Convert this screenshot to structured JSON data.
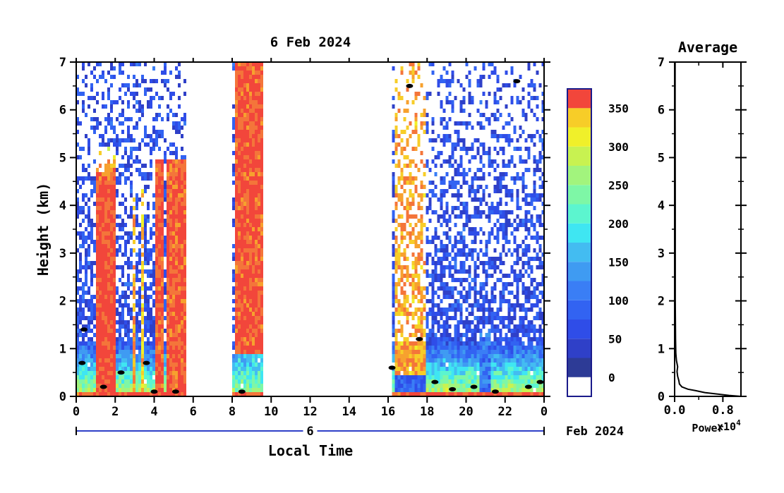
{
  "chart_data": [
    {
      "type": "heatmap",
      "title": "6 Feb 2024",
      "xlabel": "Local Time",
      "ylabel": "Height (km)",
      "x_ticks": [
        "0",
        "2",
        "4",
        "6",
        "8",
        "10",
        "12",
        "14",
        "16",
        "18",
        "20",
        "22",
        "0"
      ],
      "y_ticks": [
        "0",
        "1",
        "2",
        "3",
        "4",
        "5",
        "6",
        "7"
      ],
      "xlim_hours": [
        0,
        24
      ],
      "ylim_km": [
        0,
        7
      ],
      "date_axis": {
        "day_label": "6",
        "month_label": "Feb 2024"
      },
      "data_segments_hours": [
        [
          0,
          5.6
        ],
        [
          8.0,
          9.5
        ],
        [
          16.2,
          24
        ]
      ],
      "colorbar": {
        "tick_labels": [
          "0",
          "50",
          "100",
          "150",
          "200",
          "250",
          "300",
          "350"
        ],
        "ticks": [
          0,
          50,
          100,
          150,
          200,
          250,
          300,
          350
        ],
        "levels": [
          -25,
          0,
          25,
          50,
          75,
          100,
          125,
          150,
          175,
          200,
          225,
          250,
          275,
          300,
          325,
          350,
          375
        ],
        "colors": [
          "#2d3b96",
          "#2f40c8",
          "#2f4de8",
          "#3263f2",
          "#3a7ef5",
          "#3f9bf2",
          "#43bcf1",
          "#3fe6f2",
          "#5cf5cf",
          "#7ef7a6",
          "#a2f47d",
          "#c8f251",
          "#f0f02a",
          "#f7cd28",
          "#f7a12e",
          "#f4753a",
          "#f2463b"
        ]
      },
      "contour_color": "#000000"
    },
    {
      "type": "line",
      "title": "Average",
      "xlabel": "Power",
      "x_scale_label": "x10",
      "x_scale_exp": "4",
      "x_ticks": [
        "0.0",
        "0.8"
      ],
      "y_ticks": [
        "0",
        "1",
        "2",
        "3",
        "4",
        "5",
        "6",
        "7"
      ],
      "xlim": [
        0,
        1.1
      ],
      "ylim": [
        0,
        7
      ],
      "series": [
        {
          "x": [
            1.1,
            0.9,
            0.7,
            0.5,
            0.35,
            0.22,
            0.12,
            0.08,
            0.07,
            0.05,
            0.04,
            0.05,
            0.03,
            0.02,
            0.015,
            0.01,
            0.01,
            0.008,
            0.008
          ],
          "y": [
            0.0,
            0.02,
            0.05,
            0.08,
            0.12,
            0.15,
            0.2,
            0.26,
            0.33,
            0.42,
            0.52,
            0.62,
            0.75,
            0.9,
            1.2,
            2.0,
            4.0,
            6.0,
            7.0
          ]
        }
      ]
    }
  ]
}
